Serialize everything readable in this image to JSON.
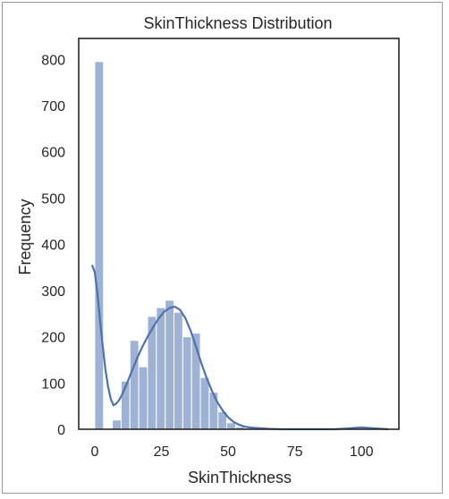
{
  "chart_data": {
    "type": "bar",
    "title": "SkinThickness Distribution",
    "xlabel": "SkinThickness",
    "ylabel": "Frequency",
    "xlim": [
      -6,
      114
    ],
    "ylim": [
      0,
      845
    ],
    "xticks": [
      0,
      25,
      50,
      75,
      100
    ],
    "yticks": [
      0,
      100,
      200,
      300,
      400,
      500,
      600,
      700,
      800
    ],
    "grid": false,
    "bar_color": "#4c72b0",
    "bin_width": 3.3,
    "bins": [
      {
        "x0": 0.0,
        "value": 795
      },
      {
        "x0": 3.3,
        "value": 0
      },
      {
        "x0": 6.6,
        "value": 20
      },
      {
        "x0": 9.9,
        "value": 104
      },
      {
        "x0": 13.2,
        "value": 192
      },
      {
        "x0": 16.5,
        "value": 135
      },
      {
        "x0": 19.8,
        "value": 244
      },
      {
        "x0": 23.1,
        "value": 263
      },
      {
        "x0": 26.4,
        "value": 279
      },
      {
        "x0": 29.7,
        "value": 253
      },
      {
        "x0": 33.0,
        "value": 200
      },
      {
        "x0": 36.3,
        "value": 208
      },
      {
        "x0": 39.6,
        "value": 112
      },
      {
        "x0": 42.9,
        "value": 80
      },
      {
        "x0": 46.2,
        "value": 38
      },
      {
        "x0": 49.5,
        "value": 14
      },
      {
        "x0": 52.8,
        "value": 5
      },
      {
        "x0": 56.1,
        "value": 2
      },
      {
        "x0": 59.4,
        "value": 1
      },
      {
        "x0": 62.7,
        "value": 0
      }
    ],
    "kde": {
      "color": "#4c72b0",
      "x": [
        -1,
        0,
        1,
        2,
        3,
        4,
        5,
        6,
        7,
        8,
        9,
        10,
        12,
        14,
        16,
        18,
        20,
        22,
        24,
        26,
        28,
        30,
        32,
        34,
        36,
        38,
        40,
        42,
        44,
        46,
        48,
        50,
        52,
        54,
        56,
        58,
        60,
        65,
        70,
        80,
        90,
        100,
        110
      ],
      "y": [
        355,
        340,
        295,
        235,
        180,
        130,
        92,
        66,
        52,
        55,
        62,
        72,
        98,
        127,
        155,
        180,
        202,
        222,
        240,
        254,
        262,
        265,
        258,
        240,
        212,
        178,
        142,
        110,
        82,
        58,
        40,
        26,
        16,
        10,
        6,
        4,
        3,
        1,
        0,
        0,
        0,
        4,
        0
      ]
    }
  }
}
